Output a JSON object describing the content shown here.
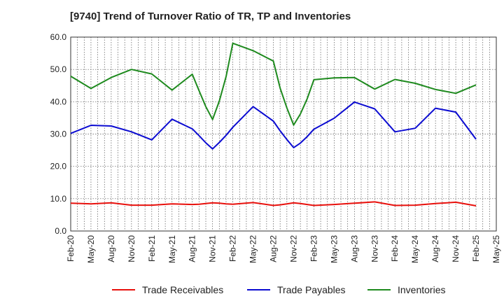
{
  "chart_data": {
    "type": "line",
    "title": "[9740]  Trend of Turnover Ratio of TR, TP and Inventories",
    "xlabel": "",
    "ylabel": "",
    "ylim": [
      0,
      60
    ],
    "yticks": [
      "0.0",
      "10.0",
      "20.0",
      "30.0",
      "40.0",
      "50.0",
      "60.0"
    ],
    "xtick_labels": [
      "Feb-20",
      "May-20",
      "Aug-20",
      "Nov-20",
      "Feb-21",
      "May-21",
      "Aug-21",
      "Nov-21",
      "Feb-22",
      "May-22",
      "Aug-22",
      "Nov-22",
      "Feb-23",
      "May-23",
      "Aug-23",
      "Nov-23",
      "Feb-24",
      "May-24",
      "Aug-24",
      "Nov-24",
      "Feb-25",
      "May-25"
    ],
    "x": [
      "2020-02",
      "2020-05",
      "2020-08",
      "2020-11",
      "2021-02",
      "2021-05",
      "2021-08",
      "2021-09",
      "2021-10",
      "2021-11",
      "2021-12",
      "2022-01",
      "2022-02",
      "2022-05",
      "2022-08",
      "2022-09",
      "2022-10",
      "2022-11",
      "2022-12",
      "2023-01",
      "2023-02",
      "2023-05",
      "2023-08",
      "2023-11",
      "2024-02",
      "2024-05",
      "2024-08",
      "2024-11",
      "2025-02"
    ],
    "grid": true,
    "legend_position": "bottom",
    "series": [
      {
        "name": "Trade Receivables",
        "color": "#e8100c",
        "values": [
          8.6,
          8.4,
          8.7,
          8.0,
          8.0,
          8.4,
          8.2,
          8.3,
          8.5,
          8.7,
          8.6,
          8.4,
          8.3,
          8.8,
          7.9,
          8.1,
          8.4,
          8.7,
          8.5,
          8.2,
          7.9,
          8.2,
          8.6,
          9.0,
          7.9,
          8.0,
          8.5,
          8.9,
          7.8
        ]
      },
      {
        "name": "Trade Payables",
        "color": "#0b0bd1",
        "values": [
          30.2,
          32.7,
          32.5,
          30.7,
          28.2,
          34.6,
          31.6,
          29.5,
          27.3,
          25.4,
          27.4,
          29.6,
          32.1,
          38.5,
          34.0,
          31.0,
          28.3,
          25.8,
          27.2,
          29.2,
          31.5,
          34.9,
          39.9,
          37.8,
          30.7,
          31.8,
          38.0,
          36.8,
          28.4
        ]
      },
      {
        "name": "Inventories",
        "color": "#1e8a1e",
        "values": [
          47.9,
          44.1,
          47.5,
          50.0,
          48.6,
          43.6,
          48.5,
          43.4,
          38.5,
          34.5,
          40.2,
          47.8,
          58.1,
          55.8,
          52.6,
          44.2,
          38.1,
          32.8,
          36.2,
          40.9,
          46.8,
          47.4,
          47.5,
          43.9,
          46.9,
          45.7,
          43.8,
          42.6,
          45.2
        ]
      }
    ]
  }
}
